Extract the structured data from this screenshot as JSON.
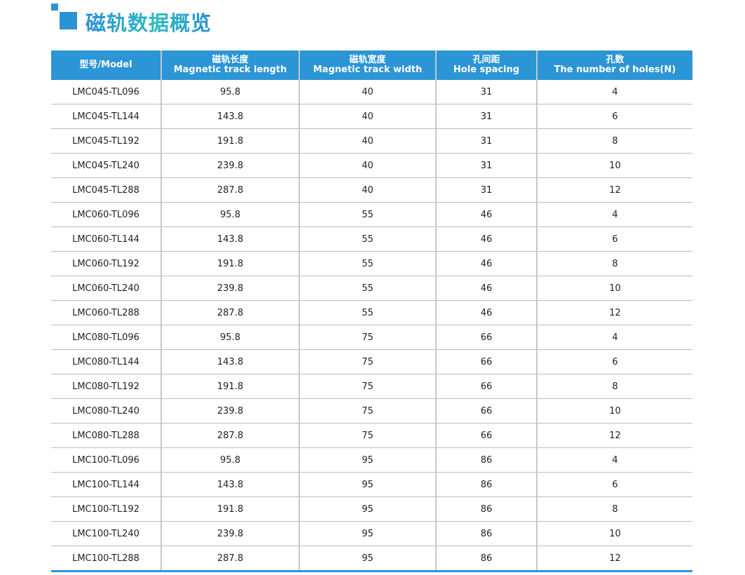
{
  "title": "磁轨数据概览",
  "colors": {
    "accent": "#2b95d5"
  },
  "table": {
    "headers": [
      {
        "cn": "",
        "en": "型号/Model"
      },
      {
        "cn": "磁轨长度",
        "en": "Magnetic track length"
      },
      {
        "cn": "磁轨宽度",
        "en": "Magnetic track width"
      },
      {
        "cn": "孔间距",
        "en": "Hole spacing"
      },
      {
        "cn": "孔数",
        "en": "The number of holes(N)"
      }
    ],
    "rows": [
      [
        "LMC045-TL096",
        "95.8",
        "40",
        "31",
        "4"
      ],
      [
        "LMC045-TL144",
        "143.8",
        "40",
        "31",
        "6"
      ],
      [
        "LMC045-TL192",
        "191.8",
        "40",
        "31",
        "8"
      ],
      [
        "LMC045-TL240",
        "239.8",
        "40",
        "31",
        "10"
      ],
      [
        "LMC045-TL288",
        "287.8",
        "40",
        "31",
        "12"
      ],
      [
        "LMC060-TL096",
        "95.8",
        "55",
        "46",
        "4"
      ],
      [
        "LMC060-TL144",
        "143.8",
        "55",
        "46",
        "6"
      ],
      [
        "LMC060-TL192",
        "191.8",
        "55",
        "46",
        "8"
      ],
      [
        "LMC060-TL240",
        "239.8",
        "55",
        "46",
        "10"
      ],
      [
        "LMC060-TL288",
        "287.8",
        "55",
        "46",
        "12"
      ],
      [
        "LMC080-TL096",
        "95.8",
        "75",
        "66",
        "4"
      ],
      [
        "LMC080-TL144",
        "143.8",
        "75",
        "66",
        "6"
      ],
      [
        "LMC080-TL192",
        "191.8",
        "75",
        "66",
        "8"
      ],
      [
        "LMC080-TL240",
        "239.8",
        "75",
        "66",
        "10"
      ],
      [
        "LMC080-TL288",
        "287.8",
        "75",
        "66",
        "12"
      ],
      [
        "LMC100-TL096",
        "95.8",
        "95",
        "86",
        "4"
      ],
      [
        "LMC100-TL144",
        "143.8",
        "95",
        "86",
        "6"
      ],
      [
        "LMC100-TL192",
        "191.8",
        "95",
        "86",
        "8"
      ],
      [
        "LMC100-TL240",
        "239.8",
        "95",
        "86",
        "10"
      ],
      [
        "LMC100-TL288",
        "287.8",
        "95",
        "86",
        "12"
      ]
    ]
  }
}
